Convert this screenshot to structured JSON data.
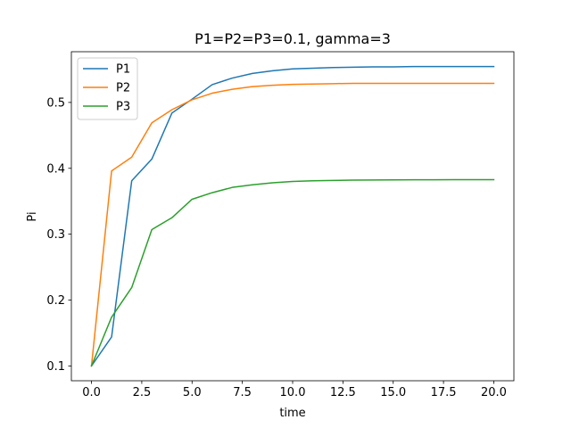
{
  "chart_data": {
    "type": "line",
    "title": "P1=P2=P3=0.1, gamma=3",
    "xlabel": "time",
    "ylabel": "Pi",
    "xlim": [
      -1.0,
      21.0
    ],
    "ylim": [
      0.0775,
      0.577
    ],
    "xticks": [
      0.0,
      2.5,
      5.0,
      7.5,
      10.0,
      12.5,
      15.0,
      17.5,
      20.0
    ],
    "xtick_labels": [
      "0.0",
      "2.5",
      "5.0",
      "7.5",
      "10.0",
      "12.5",
      "15.0",
      "17.5",
      "20.0"
    ],
    "yticks": [
      0.1,
      0.2,
      0.3,
      0.4,
      0.5
    ],
    "ytick_labels": [
      "0.1",
      "0.2",
      "0.3",
      "0.4",
      "0.5"
    ],
    "grid": false,
    "legend_position": "upper-left",
    "x": [
      0,
      1,
      2,
      3,
      4,
      5,
      6,
      7,
      8,
      9,
      10,
      11,
      12,
      13,
      14,
      15,
      16,
      17,
      18,
      19,
      20
    ],
    "series": [
      {
        "name": "P1",
        "color": "#1f77b4",
        "values": [
          0.1,
          0.144,
          0.381,
          0.414,
          0.484,
          0.505,
          0.527,
          0.537,
          0.544,
          0.548,
          0.551,
          0.552,
          0.553,
          0.5535,
          0.554,
          0.554,
          0.5545,
          0.5545,
          0.5545,
          0.5545,
          0.5545
        ]
      },
      {
        "name": "P2",
        "color": "#ff7f0e",
        "values": [
          0.1,
          0.396,
          0.417,
          0.469,
          0.489,
          0.504,
          0.514,
          0.52,
          0.524,
          0.526,
          0.5275,
          0.528,
          0.5285,
          0.529,
          0.529,
          0.529,
          0.529,
          0.529,
          0.529,
          0.529,
          0.529
        ]
      },
      {
        "name": "P3",
        "color": "#2ca02c",
        "values": [
          0.1,
          0.174,
          0.219,
          0.307,
          0.325,
          0.353,
          0.363,
          0.371,
          0.375,
          0.378,
          0.38,
          0.381,
          0.3815,
          0.382,
          0.3822,
          0.3824,
          0.3825,
          0.3826,
          0.3827,
          0.3827,
          0.3827
        ]
      }
    ]
  }
}
